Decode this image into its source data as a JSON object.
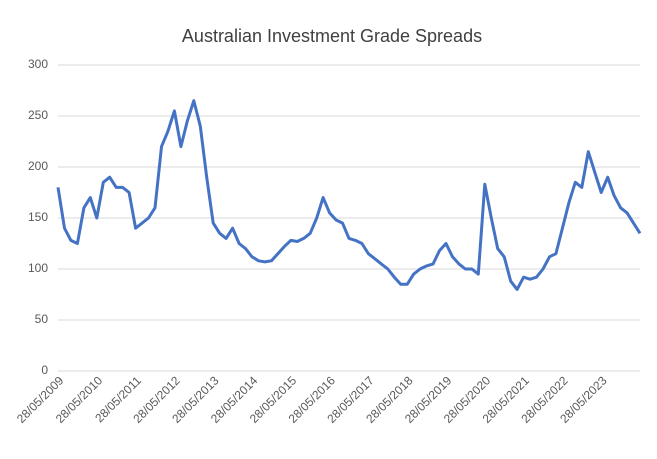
{
  "chart_data": {
    "type": "line",
    "title": "Australian Investment Grade Spreads",
    "categories": [
      "28/05/2009",
      null,
      null,
      null,
      null,
      null,
      "28/05/2010",
      null,
      null,
      null,
      null,
      null,
      "28/05/2011",
      null,
      null,
      null,
      null,
      null,
      "28/05/2012",
      null,
      null,
      null,
      null,
      null,
      "28/05/2013",
      null,
      null,
      null,
      null,
      null,
      "28/05/2014",
      null,
      null,
      null,
      null,
      null,
      "28/05/2015",
      null,
      null,
      null,
      null,
      null,
      "28/05/2016",
      null,
      null,
      null,
      null,
      null,
      "28/05/2017",
      null,
      null,
      null,
      null,
      null,
      "28/05/2018",
      null,
      null,
      null,
      null,
      null,
      "28/05/2019",
      null,
      null,
      null,
      null,
      null,
      "28/05/2020",
      null,
      null,
      null,
      null,
      null,
      "28/05/2021",
      null,
      null,
      null,
      null,
      null,
      "28/05/2022",
      null,
      null,
      null,
      null,
      null,
      "28/05/2023",
      null,
      null,
      null,
      null,
      null,
      null
    ],
    "series": [
      {
        "color": "#4472c4",
        "values": [
          180,
          140,
          128,
          125,
          160,
          170,
          150,
          185,
          190,
          180,
          180,
          175,
          140,
          145,
          150,
          160,
          220,
          235,
          255,
          220,
          245,
          265,
          240,
          190,
          145,
          135,
          130,
          140,
          125,
          120,
          112,
          108,
          107,
          108,
          115,
          122,
          128,
          127,
          130,
          135,
          150,
          170,
          155,
          148,
          145,
          130,
          128,
          125,
          115,
          110,
          105,
          100,
          92,
          85,
          85,
          95,
          100,
          103,
          105,
          118,
          125,
          112,
          105,
          100,
          100,
          95,
          183,
          150,
          120,
          112,
          88,
          80,
          92,
          90,
          92,
          100,
          112,
          115,
          140,
          165,
          185,
          180,
          215,
          195,
          175,
          190,
          172,
          160,
          155,
          145,
          135
        ]
      }
    ],
    "ylim": [
      0,
      300
    ],
    "yticks": [
      0,
      50,
      100,
      150,
      200,
      250,
      300
    ],
    "grid": true
  }
}
